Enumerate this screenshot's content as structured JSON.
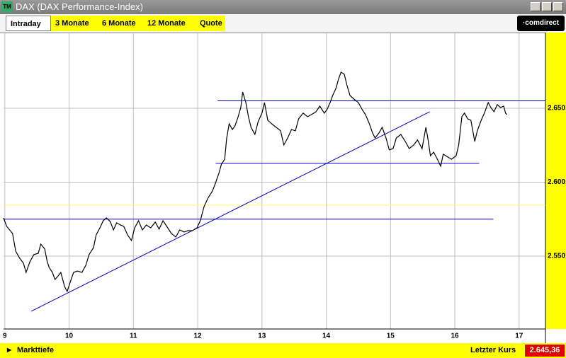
{
  "window": {
    "icon": "TM",
    "title": "DAX (DAX Performance-Index)"
  },
  "tabs": [
    "Intraday",
    "3 Monate",
    "6 Monate",
    "12 Monate",
    "Quote"
  ],
  "logo": "·comdirect",
  "chart_data": {
    "type": "line",
    "x": [
      8.98,
      9.03,
      9.12,
      9.17,
      9.23,
      9.29,
      9.33,
      9.39,
      9.45,
      9.52,
      9.56,
      9.62,
      9.66,
      9.69,
      9.74,
      9.78,
      9.83,
      9.87,
      9.93,
      9.97,
      10.02,
      10.07,
      10.13,
      10.2,
      10.26,
      10.31,
      10.38,
      10.42,
      10.48,
      10.53,
      10.58,
      10.64,
      10.69,
      10.74,
      10.8,
      10.85,
      10.91,
      10.97,
      11.02,
      11.08,
      11.14,
      11.2,
      11.27,
      11.34,
      11.4,
      11.46,
      11.52,
      11.59,
      11.66,
      11.72,
      11.79,
      11.85,
      11.92,
      11.99,
      12.04,
      12.1,
      12.16,
      12.23,
      12.28,
      12.33,
      12.37,
      12.42,
      12.45,
      12.49,
      12.54,
      12.58,
      12.63,
      12.67,
      12.7,
      12.75,
      12.79,
      12.83,
      12.89,
      12.94,
      13.0,
      13.04,
      13.09,
      13.15,
      13.22,
      13.29,
      13.34,
      13.4,
      13.46,
      13.52,
      13.57,
      13.64,
      13.71,
      13.77,
      13.84,
      13.9,
      13.97,
      14.01,
      14.06,
      14.1,
      14.15,
      14.19,
      14.23,
      14.28,
      14.32,
      14.37,
      14.43,
      14.5,
      14.56,
      14.61,
      14.67,
      14.72,
      14.76,
      14.82,
      14.87,
      14.93,
      14.98,
      15.04,
      15.09,
      15.16,
      15.23,
      15.29,
      15.36,
      15.42,
      15.49,
      15.55,
      15.58,
      15.62,
      15.67,
      15.73,
      15.78,
      15.82,
      15.89,
      15.95,
      16.02,
      16.06,
      16.11,
      16.15,
      16.2,
      16.25,
      16.31,
      16.35,
      16.41,
      16.46,
      16.52,
      16.56,
      16.61,
      16.66,
      16.71,
      16.76,
      16.79,
      16.81
    ],
    "series": [
      {
        "color": "#000000",
        "values": [
          2575.8,
          2570.1,
          2565.3,
          2553.3,
          2548.6,
          2545.2,
          2539.0,
          2546.2,
          2551.0,
          2551.9,
          2558.1,
          2554.8,
          2546.2,
          2542.3,
          2539.0,
          2534.2,
          2536.6,
          2539.0,
          2529.4,
          2526.1,
          2532.8,
          2539.0,
          2539.9,
          2539.0,
          2543.8,
          2551.0,
          2555.7,
          2564.3,
          2569.1,
          2573.9,
          2575.8,
          2573.4,
          2567.7,
          2572.5,
          2571.0,
          2570.1,
          2564.3,
          2560.5,
          2569.1,
          2573.9,
          2567.7,
          2571.0,
          2569.1,
          2573.0,
          2568.2,
          2573.9,
          2570.1,
          2565.3,
          2562.9,
          2567.7,
          2566.3,
          2567.2,
          2567.2,
          2569.1,
          2573.9,
          2583.5,
          2589.2,
          2594.0,
          2599.8,
          2606.0,
          2612.2,
          2615.5,
          2629.4,
          2639.5,
          2635.6,
          2638.0,
          2644.3,
          2650.5,
          2661.0,
          2653.8,
          2644.3,
          2637.1,
          2632.3,
          2640.9,
          2646.7,
          2653.8,
          2641.9,
          2639.5,
          2637.1,
          2634.7,
          2625.1,
          2629.9,
          2635.6,
          2634.7,
          2642.8,
          2646.7,
          2644.3,
          2645.7,
          2647.6,
          2651.4,
          2646.7,
          2649.0,
          2653.8,
          2658.6,
          2663.4,
          2669.6,
          2674.4,
          2673.0,
          2665.8,
          2658.6,
          2656.2,
          2653.8,
          2649.0,
          2645.7,
          2639.5,
          2633.3,
          2629.9,
          2633.3,
          2637.1,
          2629.9,
          2621.8,
          2622.7,
          2629.9,
          2632.3,
          2627.5,
          2622.7,
          2625.1,
          2628.5,
          2622.7,
          2637.1,
          2629.9,
          2617.9,
          2620.3,
          2615.5,
          2610.8,
          2618.9,
          2617.0,
          2615.5,
          2617.9,
          2625.1,
          2644.3,
          2646.7,
          2642.8,
          2641.9,
          2627.5,
          2634.7,
          2641.9,
          2646.7,
          2653.8,
          2650.5,
          2647.6,
          2652.4,
          2650.5,
          2651.4,
          2646.7,
          2645.7
        ]
      }
    ],
    "lines": [
      {
        "x": [
          8.98,
          17.41
        ],
        "y": [
          2584.5,
          2584.5
        ],
        "color": "#ffff66"
      },
      {
        "x": [
          8.98,
          16.6
        ],
        "y": [
          2575,
          2575
        ],
        "color": "#0000c0"
      },
      {
        "x": [
          12.31,
          17.41
        ],
        "y": [
          2655,
          2655
        ],
        "color": "#0000c0"
      },
      {
        "x": [
          12.28,
          16.38
        ],
        "y": [
          2612.7,
          2612.7
        ],
        "color": "#0000c0"
      },
      {
        "x": [
          9.41,
          15.61
        ],
        "y": [
          2512.7,
          2647.6
        ],
        "color": "#0000c0"
      }
    ],
    "xlim": [
      8.98,
      17.41
    ],
    "ylim": [
      2500.7,
      2700.7
    ],
    "xticks": [
      9,
      10,
      11,
      12,
      13,
      14,
      15,
      16,
      17
    ],
    "yticks": [
      {
        "value": 2550,
        "label": "2.550"
      },
      {
        "value": 2600,
        "label": "2.600"
      },
      {
        "value": 2650,
        "label": "2.650"
      }
    ],
    "grid": true
  },
  "footer": {
    "left": "Markttiefe",
    "right_label": "Letzter Kurs",
    "right_value": "2.645,36"
  }
}
